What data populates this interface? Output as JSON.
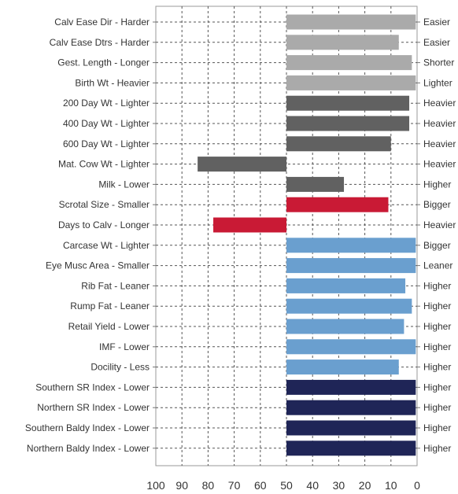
{
  "chart_data": {
    "type": "bar",
    "orientation": "horizontal",
    "xlim": [
      100,
      0
    ],
    "xticks": [
      "100",
      "90",
      "80",
      "70",
      "60",
      "50",
      "40",
      "30",
      "20",
      "10",
      "0"
    ],
    "grid": true,
    "colors": {
      "light_gray": "#aaaaaa",
      "dark_gray": "#616161",
      "red": "#c91a35",
      "blue": "#6a9fcf",
      "navy": "#1f2557"
    },
    "rows": [
      {
        "left_label": "Calv Ease Dir - Harder",
        "right_label": "Easier",
        "from": 50,
        "to": 0.5,
        "color": "light_gray"
      },
      {
        "left_label": "Calv Ease Dtrs - Harder",
        "right_label": "Easier",
        "from": 50,
        "to": 7,
        "color": "light_gray"
      },
      {
        "left_label": "Gest. Length - Longer",
        "right_label": "Shorter",
        "from": 50,
        "to": 2,
        "color": "light_gray"
      },
      {
        "left_label": "Birth Wt - Heavier",
        "right_label": "Lighter",
        "from": 50,
        "to": 0.5,
        "color": "light_gray"
      },
      {
        "left_label": "200 Day Wt - Lighter",
        "right_label": "Heavier",
        "from": 50,
        "to": 3,
        "color": "dark_gray"
      },
      {
        "left_label": "400 Day Wt - Lighter",
        "right_label": "Heavier",
        "from": 50,
        "to": 3,
        "color": "dark_gray"
      },
      {
        "left_label": "600 Day Wt - Lighter",
        "right_label": "Heavier",
        "from": 50,
        "to": 10,
        "color": "dark_gray"
      },
      {
        "left_label": "Mat. Cow Wt - Lighter",
        "right_label": "Heavier",
        "from": 50,
        "to": 84,
        "color": "dark_gray"
      },
      {
        "left_label": "Milk - Lower",
        "right_label": "Higher",
        "from": 50,
        "to": 28,
        "color": "dark_gray"
      },
      {
        "left_label": "Scrotal Size - Smaller",
        "right_label": "Bigger",
        "from": 50,
        "to": 11,
        "color": "red"
      },
      {
        "left_label": "Days to Calv - Longer",
        "right_label": "Heavier",
        "from": 50,
        "to": 78,
        "color": "red"
      },
      {
        "left_label": "Carcase Wt - Lighter",
        "right_label": "Bigger",
        "from": 50,
        "to": 0.5,
        "color": "blue"
      },
      {
        "left_label": "Eye Musc Area - Smaller",
        "right_label": "Leaner",
        "from": 50,
        "to": 0.5,
        "color": "blue"
      },
      {
        "left_label": "Rib Fat - Leaner",
        "right_label": "Higher",
        "from": 50,
        "to": 4.5,
        "color": "blue"
      },
      {
        "left_label": "Rump Fat - Leaner",
        "right_label": "Higher",
        "from": 50,
        "to": 2,
        "color": "blue"
      },
      {
        "left_label": "Retail Yield - Lower",
        "right_label": "Higher",
        "from": 50,
        "to": 5,
        "color": "blue"
      },
      {
        "left_label": "IMF - Lower",
        "right_label": "Higher",
        "from": 50,
        "to": 0.5,
        "color": "blue"
      },
      {
        "left_label": "Docility - Less",
        "right_label": "Higher",
        "from": 50,
        "to": 7,
        "color": "blue"
      },
      {
        "left_label": "Southern SR Index - Lower",
        "right_label": "Higher",
        "from": 50,
        "to": 0.5,
        "color": "navy"
      },
      {
        "left_label": "Northern SR Index - Lower",
        "right_label": "Higher",
        "from": 50,
        "to": 0.5,
        "color": "navy"
      },
      {
        "left_label": "Southern Baldy Index - Lower",
        "right_label": "Higher",
        "from": 50,
        "to": 0.5,
        "color": "navy"
      },
      {
        "left_label": "Northern Baldy Index - Lower",
        "right_label": "Higher",
        "from": 50,
        "to": 0.5,
        "color": "navy"
      }
    ]
  }
}
